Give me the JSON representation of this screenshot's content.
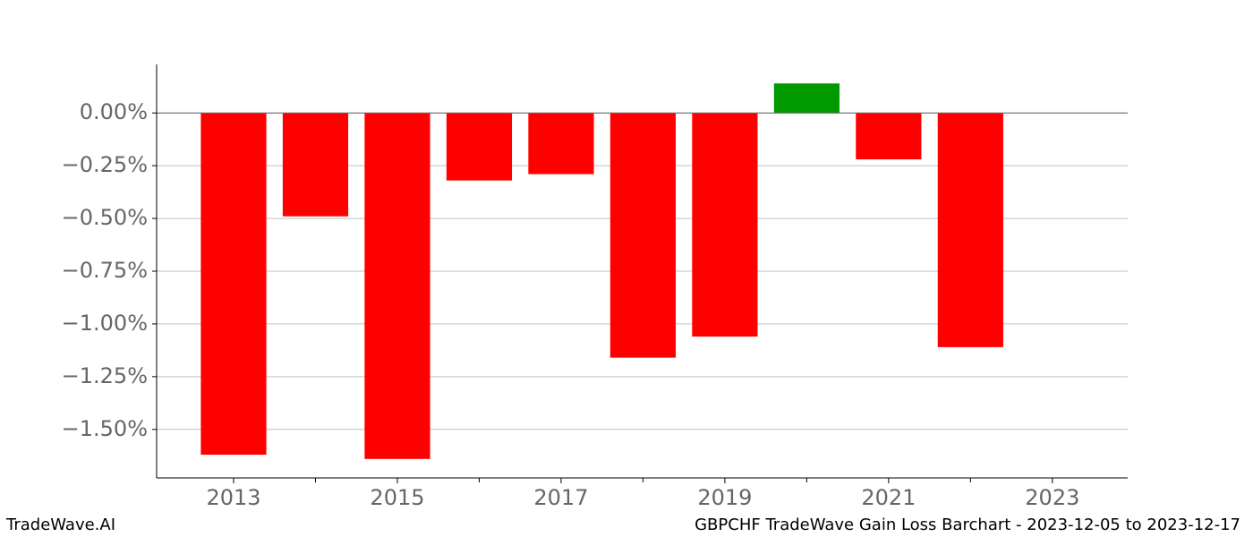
{
  "chart_data": {
    "type": "bar",
    "title": "GBPCHF TradeWave Gain Loss Barchart - 2023-12-05 to 2023-12-17",
    "watermark": "TradeWave.AI",
    "x": [
      2013,
      2014,
      2015,
      2016,
      2017,
      2018,
      2019,
      2020,
      2021,
      2022
    ],
    "values": [
      -1.62,
      -0.49,
      -1.64,
      -0.32,
      -0.29,
      -1.16,
      -1.06,
      0.14,
      -0.22,
      -1.11
    ],
    "color_positive": "#009900",
    "color_negative": "#ff0000",
    "xlim": [
      2012.06,
      2023.92
    ],
    "xticks": [
      2013,
      2015,
      2017,
      2019,
      2021,
      2023
    ],
    "xminorticks": [
      2014,
      2016,
      2018,
      2020,
      2022
    ],
    "ylim": [
      -1.73,
      0.23
    ],
    "yticks": [
      {
        "value": 0,
        "label": "0.00%"
      },
      {
        "value": -0.25,
        "label": "−0.25%"
      },
      {
        "value": -0.5,
        "label": "−0.50%"
      },
      {
        "value": -0.75,
        "label": "−0.75%"
      },
      {
        "value": -1,
        "label": "−1.00%"
      },
      {
        "value": -1.25,
        "label": "−1.25%"
      },
      {
        "value": -1.5,
        "label": "−1.50%"
      }
    ],
    "grid": true
  }
}
